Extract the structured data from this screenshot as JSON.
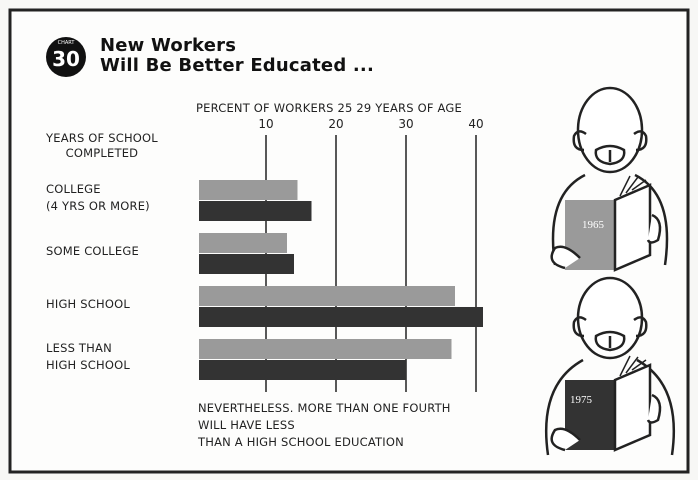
{
  "chart_data": {
    "type": "bar",
    "orientation": "horizontal",
    "chart_label": "CHART",
    "chart_number": "30",
    "title": "New Workers\nWill Be Better Educated ...",
    "x_label": "PERCENT OF WORKERS 25 29 YEARS OF AGE",
    "y_label": "YEARS OF SCHOOL\nCOMPLETED",
    "categories": [
      "COLLEGE\n(4 YRS OR MORE)",
      "SOME COLLEGE",
      "HIGH SCHOOL",
      "LESS THAN\nHIGH SCHOOL"
    ],
    "series": [
      {
        "name": "1965",
        "color": "#9a9a9a",
        "values": [
          14.5,
          13,
          37,
          36.5
        ]
      },
      {
        "name": "1975",
        "color": "#333333",
        "values": [
          16.5,
          14,
          41,
          30
        ]
      }
    ],
    "xlim": [
      0,
      42
    ],
    "xticks": [
      10,
      20,
      30,
      40
    ],
    "grid": true,
    "annotation": "NEVERTHELESS. MORE THAN ONE FOURTH\nWILL HAVE LESS\nTHAN A HIGH SCHOOL EDUCATION"
  }
}
